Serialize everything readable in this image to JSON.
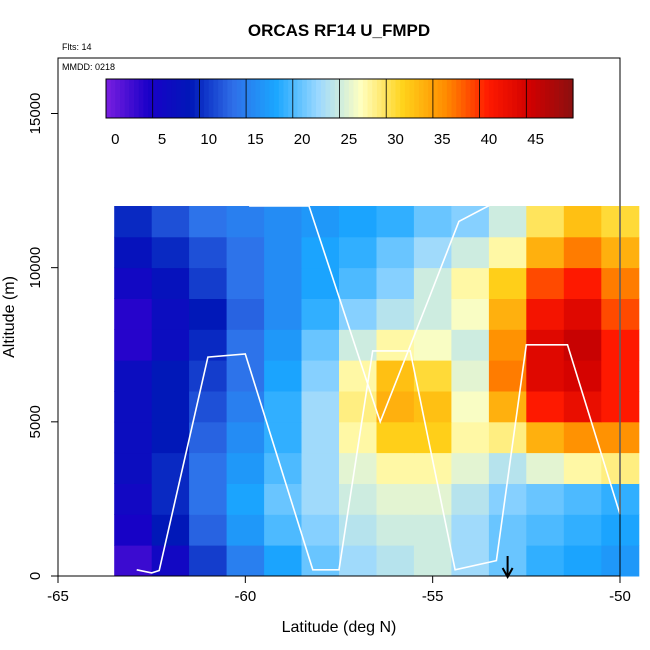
{
  "chart_data": {
    "type": "heatmap",
    "title": "ORCAS RF14 U_FMPD",
    "flights_label": "Flts: 14",
    "date_label": "MMDD: 0218",
    "xlabel": "Latitude (deg N)",
    "ylabel": "Altitude (m)",
    "xlim": [
      -65,
      -50
    ],
    "ylim": [
      0,
      16800
    ],
    "x_ticks": [
      -65,
      -60,
      -55,
      -50
    ],
    "x_tick_labels": [
      "-65",
      "-60",
      "-55",
      "-50"
    ],
    "y_ticks": [
      0,
      5000,
      10000,
      15000
    ],
    "y_tick_labels": [
      "0",
      "5000",
      "10000",
      "15000"
    ],
    "colorbar": {
      "min": -1,
      "max": 49,
      "ticks": [
        0,
        5,
        10,
        15,
        20,
        25,
        30,
        35,
        40,
        45
      ],
      "tick_labels": [
        "0",
        "5",
        "10",
        "15",
        "20",
        "25",
        "30",
        "35",
        "40",
        "45"
      ],
      "colors": [
        "#7a1fe0",
        "#1a00c8",
        "#0018b8",
        "#2f6fe8",
        "#1aa6ff",
        "#9ad8ff",
        "#ffffc0",
        "#ffd21a",
        "#ff8c00",
        "#ff1a00",
        "#d00000",
        "#8b1010"
      ]
    },
    "wind_field": {
      "description_values": "wind speed U (m/s) on latitude-altitude grid",
      "lat": [
        -63.0,
        -62.0,
        -61.0,
        -60.0,
        -59.0,
        -58.0,
        -57.0,
        -56.0,
        -55.0,
        -54.0,
        -53.0,
        -52.0,
        -51.0,
        -50.0
      ],
      "alt": [
        500,
        1500,
        2500,
        3500,
        4500,
        5500,
        6500,
        7500,
        8500,
        9500,
        10500,
        11500
      ],
      "values": [
        [
          2,
          5,
          10,
          14,
          17,
          20,
          22,
          23,
          24,
          22,
          20,
          18,
          17,
          16
        ],
        [
          4,
          8,
          12,
          16,
          19,
          21,
          23,
          24,
          24,
          22,
          20,
          19,
          18,
          17
        ],
        [
          5,
          9,
          13,
          17,
          20,
          22,
          24,
          25,
          25,
          23,
          21,
          20,
          19,
          18
        ],
        [
          6,
          9,
          13,
          16,
          19,
          22,
          25,
          27,
          27,
          25,
          23,
          25,
          27,
          28
        ],
        [
          6,
          8,
          12,
          15,
          18,
          22,
          27,
          31,
          31,
          27,
          28,
          33,
          35,
          35
        ],
        [
          6,
          8,
          11,
          14,
          18,
          22,
          28,
          33,
          32,
          26,
          33,
          40,
          42,
          40
        ],
        [
          6,
          8,
          10,
          13,
          17,
          21,
          27,
          32,
          30,
          25,
          36,
          43,
          44,
          40
        ],
        [
          3,
          6,
          9,
          13,
          16,
          20,
          24,
          27,
          26,
          24,
          35,
          43,
          45,
          40
        ],
        [
          3,
          6,
          8,
          12,
          15,
          18,
          21,
          23,
          24,
          26,
          33,
          41,
          43,
          38
        ],
        [
          5,
          7,
          10,
          13,
          15,
          17,
          19,
          21,
          24,
          27,
          31,
          38,
          40,
          36
        ],
        [
          7,
          9,
          11,
          13,
          15,
          17,
          18,
          20,
          22,
          24,
          27,
          33,
          36,
          33
        ],
        [
          9,
          11,
          13,
          14,
          15,
          16,
          17,
          18,
          20,
          21,
          24,
          29,
          32,
          30
        ]
      ]
    },
    "flight_track": {
      "lat": [
        -62.9,
        -62.5,
        -62.3,
        -61.0,
        -60.0,
        -58.2,
        -57.5,
        -56.6,
        -55.6,
        -54.4,
        -53.3,
        -52.5,
        -51.8,
        -51.4,
        -50.0,
        -50.0,
        -50.9,
        -52.0,
        -53.2,
        -54.3,
        -55.1,
        -56.4,
        -58.3,
        -59.9
      ],
      "alt": [
        200,
        100,
        180,
        7100,
        7200,
        200,
        200,
        7300,
        7300,
        200,
        500,
        7500,
        7500,
        7500,
        2000,
        12400,
        12300,
        12300,
        12200,
        11500,
        9000,
        5000,
        12000,
        12000
      ]
    },
    "marker_lat": -53.0
  }
}
